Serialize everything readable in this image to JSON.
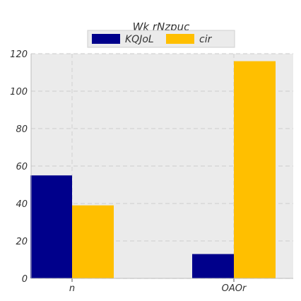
{
  "chart_data": {
    "type": "bar",
    "title": "Wk rNzpuc",
    "xlabel": "",
    "ylabel": "",
    "categories": [
      "n",
      "OAOr"
    ],
    "series": [
      {
        "name": "KQJoL",
        "values": [
          55,
          13
        ],
        "color": "#00008b"
      },
      {
        "name": "cir",
        "values": [
          39,
          116
        ],
        "color": "#ffbf00"
      }
    ],
    "ylim": [
      0,
      120
    ],
    "yticks": [
      0,
      20,
      40,
      60,
      80,
      100,
      120
    ],
    "grid": true,
    "legend_position": "top-center"
  }
}
